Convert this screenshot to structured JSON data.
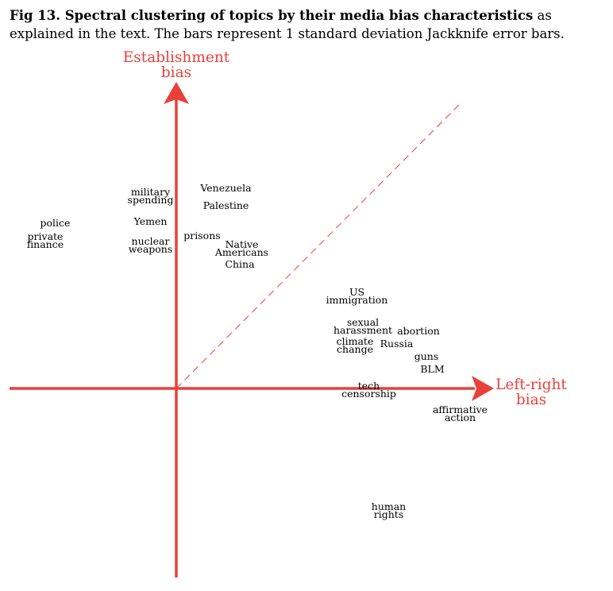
{
  "caption": {
    "label": "Fig 13.",
    "title": "Spectral clustering of topics by their media bias characteristics",
    "rest": "as explained in the text. The bars represent 1 standard deviation Jackknife error bars."
  },
  "colors": {
    "axis": "#e8413a",
    "text": "#000000"
  },
  "chart_data": {
    "type": "scatter",
    "xlabel": "Left-right bias",
    "ylabel": "Establishment bias",
    "xlim": [
      -4.6,
      8.5
    ],
    "ylim": [
      -5.1,
      8.7
    ],
    "diagonal_reference": "dashed line y = x",
    "grid": false,
    "legend": "none",
    "points": [
      {
        "label": "military spending",
        "x": -0.65,
        "y": 6.05
      },
      {
        "label": "Venezuela",
        "x": 1.25,
        "y": 6.3
      },
      {
        "label": "Palestine",
        "x": 1.25,
        "y": 5.75
      },
      {
        "label": "police",
        "x": -3.05,
        "y": 5.2
      },
      {
        "label": "Yemen",
        "x": -0.65,
        "y": 5.25
      },
      {
        "label": "private finance",
        "x": -3.3,
        "y": 4.65
      },
      {
        "label": "prisons",
        "x": 0.65,
        "y": 4.8
      },
      {
        "label": "nuclear weapons",
        "x": -0.65,
        "y": 4.5
      },
      {
        "label": "Native Americans",
        "x": 1.65,
        "y": 4.4
      },
      {
        "label": "China",
        "x": 1.6,
        "y": 3.9
      },
      {
        "label": "US immigration",
        "x": 4.55,
        "y": 2.9
      },
      {
        "label": "sexual harassment",
        "x": 4.7,
        "y": 1.95
      },
      {
        "label": "abortion",
        "x": 6.1,
        "y": 1.8
      },
      {
        "label": "climate change",
        "x": 4.5,
        "y": 1.35
      },
      {
        "label": "Russia",
        "x": 5.55,
        "y": 1.4
      },
      {
        "label": "guns",
        "x": 6.3,
        "y": 1.0
      },
      {
        "label": "BLM",
        "x": 6.45,
        "y": 0.6
      },
      {
        "label": "tech censorship",
        "x": 4.85,
        "y": -0.05
      },
      {
        "label": "affirmative action",
        "x": 7.15,
        "y": -0.8
      },
      {
        "label": "human rights",
        "x": 5.35,
        "y": -3.85
      }
    ]
  }
}
